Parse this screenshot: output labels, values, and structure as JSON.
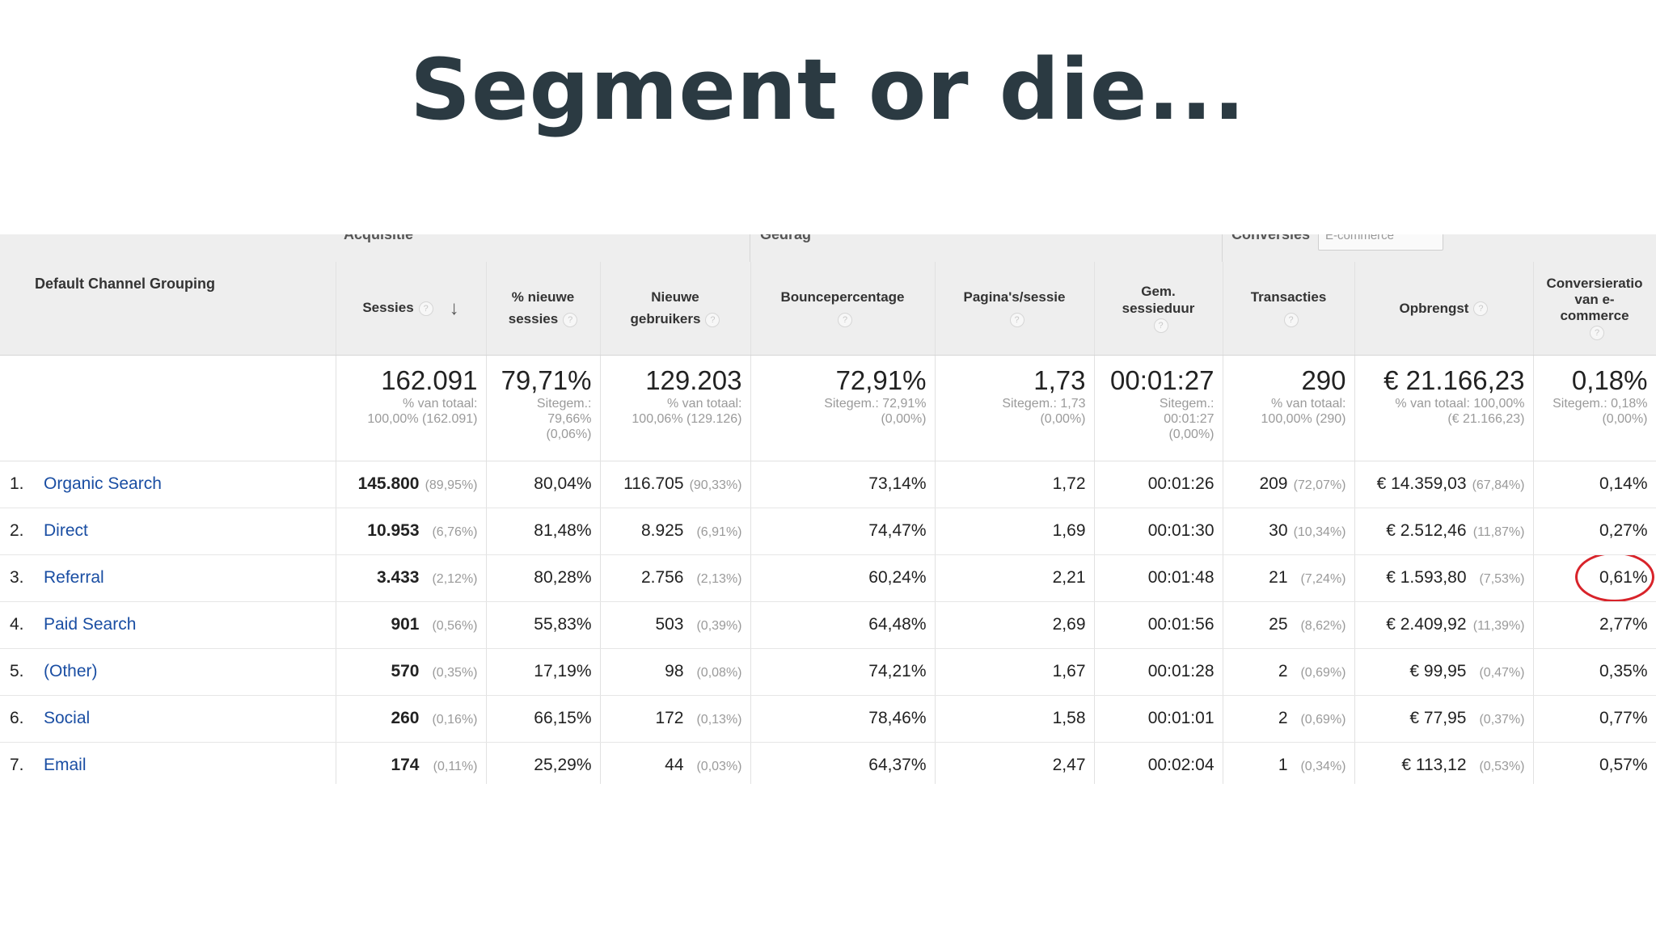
{
  "slide": {
    "title": "Segment or die..."
  },
  "groups": {
    "acquisition": "Acquisitie",
    "behavior": "Gedrag",
    "conversion": "Conversies",
    "conversion_select": "E-commerce"
  },
  "columns": {
    "dimension": "Default Channel Grouping",
    "sessions": "Sessies",
    "new_sessions_pct": [
      "% nieuwe",
      "sessies"
    ],
    "new_users": [
      "Nieuwe",
      "gebruikers"
    ],
    "bounce_rate": "Bouncepercentage",
    "pages_per_session": "Pagina's/sessie",
    "avg_session_duration": [
      "Gem.",
      "sessieduur"
    ],
    "transactions": "Transacties",
    "revenue": "Opbrengst",
    "conversion_rate": [
      "Conversieratio",
      "van e-",
      "commerce"
    ]
  },
  "totals": {
    "sessions": {
      "value": "162.091",
      "sub1": "% van totaal:",
      "sub2": "100,00% (162.091)"
    },
    "new_sessions_pct": {
      "value": "79,71%",
      "sub1": "Sitegem.:",
      "sub2": "79,66%",
      "sub3": "(0,06%)"
    },
    "new_users": {
      "value": "129.203",
      "sub1": "% van totaal:",
      "sub2": "100,06% (129.126)"
    },
    "bounce_rate": {
      "value": "72,91%",
      "sub1": "Sitegem.: 72,91%",
      "sub2": "(0,00%)"
    },
    "pages_per_session": {
      "value": "1,73",
      "sub1": "Sitegem.: 1,73",
      "sub2": "(0,00%)"
    },
    "avg_session_duration": {
      "value": "00:01:27",
      "sub1": "Sitegem.:",
      "sub2": "00:01:27",
      "sub3": "(0,00%)"
    },
    "transactions": {
      "value": "290",
      "sub1": "% van totaal:",
      "sub2": "100,00% (290)"
    },
    "revenue": {
      "value": "€ 21.166,23",
      "sub1": "% van totaal: 100,00%",
      "sub2": "(€ 21.166,23)"
    },
    "conversion_rate": {
      "value": "0,18%",
      "sub1": "Sitegem.: 0,18%",
      "sub2": "(0,00%)"
    }
  },
  "rows": [
    {
      "num": "1.",
      "channel": "Organic Search",
      "sessions": "145.800",
      "sessions_pct": "(89,95%)",
      "new_sessions_pct": "80,04%",
      "new_users": "116.705",
      "new_users_pct": "(90,33%)",
      "bounce_rate": "73,14%",
      "pages_per_session": "1,72",
      "avg_session_duration": "00:01:26",
      "transactions": "209",
      "transactions_pct": "(72,07%)",
      "revenue": "€ 14.359,03",
      "revenue_pct": "(67,84%)",
      "conversion_rate": "0,14%"
    },
    {
      "num": "2.",
      "channel": "Direct",
      "sessions": "10.953",
      "sessions_pct": "(6,76%)",
      "new_sessions_pct": "81,48%",
      "new_users": "8.925",
      "new_users_pct": "(6,91%)",
      "bounce_rate": "74,47%",
      "pages_per_session": "1,69",
      "avg_session_duration": "00:01:30",
      "transactions": "30",
      "transactions_pct": "(10,34%)",
      "revenue": "€ 2.512,46",
      "revenue_pct": "(11,87%)",
      "conversion_rate": "0,27%"
    },
    {
      "num": "3.",
      "channel": "Referral",
      "sessions": "3.433",
      "sessions_pct": "(2,12%)",
      "new_sessions_pct": "80,28%",
      "new_users": "2.756",
      "new_users_pct": "(2,13%)",
      "bounce_rate": "60,24%",
      "pages_per_session": "2,21",
      "avg_session_duration": "00:01:48",
      "transactions": "21",
      "transactions_pct": "(7,24%)",
      "revenue": "€ 1.593,80",
      "revenue_pct": "(7,53%)",
      "conversion_rate": "0,61%"
    },
    {
      "num": "4.",
      "channel": "Paid Search",
      "sessions": "901",
      "sessions_pct": "(0,56%)",
      "new_sessions_pct": "55,83%",
      "new_users": "503",
      "new_users_pct": "(0,39%)",
      "bounce_rate": "64,48%",
      "pages_per_session": "2,69",
      "avg_session_duration": "00:01:56",
      "transactions": "25",
      "transactions_pct": "(8,62%)",
      "revenue": "€ 2.409,92",
      "revenue_pct": "(11,39%)",
      "conversion_rate": "2,77%"
    },
    {
      "num": "5.",
      "channel": "(Other)",
      "sessions": "570",
      "sessions_pct": "(0,35%)",
      "new_sessions_pct": "17,19%",
      "new_users": "98",
      "new_users_pct": "(0,08%)",
      "bounce_rate": "74,21%",
      "pages_per_session": "1,67",
      "avg_session_duration": "00:01:28",
      "transactions": "2",
      "transactions_pct": "(0,69%)",
      "revenue": "€ 99,95",
      "revenue_pct": "(0,47%)",
      "conversion_rate": "0,35%"
    },
    {
      "num": "6.",
      "channel": "Social",
      "sessions": "260",
      "sessions_pct": "(0,16%)",
      "new_sessions_pct": "66,15%",
      "new_users": "172",
      "new_users_pct": "(0,13%)",
      "bounce_rate": "78,46%",
      "pages_per_session": "1,58",
      "avg_session_duration": "00:01:01",
      "transactions": "2",
      "transactions_pct": "(0,69%)",
      "revenue": "€ 77,95",
      "revenue_pct": "(0,37%)",
      "conversion_rate": "0,77%"
    },
    {
      "num": "7.",
      "channel": "Email",
      "sessions": "174",
      "sessions_pct": "(0,11%)",
      "new_sessions_pct": "25,29%",
      "new_users": "44",
      "new_users_pct": "(0,03%)",
      "bounce_rate": "64,37%",
      "pages_per_session": "2,47",
      "avg_session_duration": "00:02:04",
      "transactions": "1",
      "transactions_pct": "(0,34%)",
      "revenue": "€ 113,12",
      "revenue_pct": "(0,53%)",
      "conversion_rate": "0,57%"
    }
  ],
  "highlight": {
    "color": "#d8232a",
    "shape": "circle"
  },
  "colors": {
    "link": "#1a4ea3",
    "header_bg": "#eeeeee",
    "title": "#2b3a42"
  },
  "icons": {
    "help": "question-mark-icon",
    "sort": "sort-descending-arrow-icon"
  }
}
